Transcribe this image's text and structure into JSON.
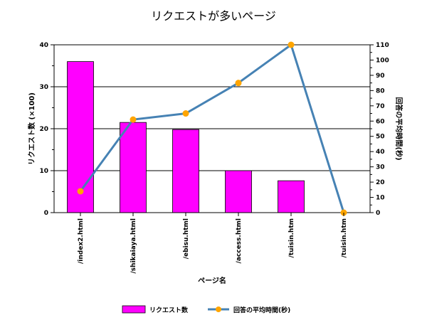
{
  "chart_data": {
    "type": "bar+line",
    "title": "リクエストが多いページ",
    "xlabel": "ページ名",
    "categories": [
      "/index2.html",
      "/shikaiaya.html",
      "/ebisu.html",
      "/access.html",
      "/tuisin.htm",
      "/tuisin.htm"
    ],
    "series": [
      {
        "name": "リクエスト数",
        "kind": "bar",
        "axis": "left",
        "color": "#ff00ff",
        "values": [
          36,
          21.5,
          19.8,
          10,
          7.6,
          0
        ]
      },
      {
        "name": "回答の平均時間(秒)",
        "kind": "line",
        "axis": "right",
        "color": "#4682b4",
        "marker_color": "#ffa500",
        "values": [
          14,
          61,
          65,
          85,
          110,
          0
        ]
      }
    ],
    "y_left": {
      "label": "リクエスト数 (×100)",
      "lim": [
        0,
        40
      ],
      "ticks": [
        0,
        10,
        20,
        30,
        40
      ]
    },
    "y_right": {
      "label": "回答の平均時間(秒)",
      "lim": [
        0,
        110
      ],
      "ticks": [
        0,
        10,
        20,
        30,
        40,
        50,
        60,
        70,
        80,
        90,
        100,
        110
      ]
    },
    "grid": true,
    "legend_position": "bottom"
  }
}
